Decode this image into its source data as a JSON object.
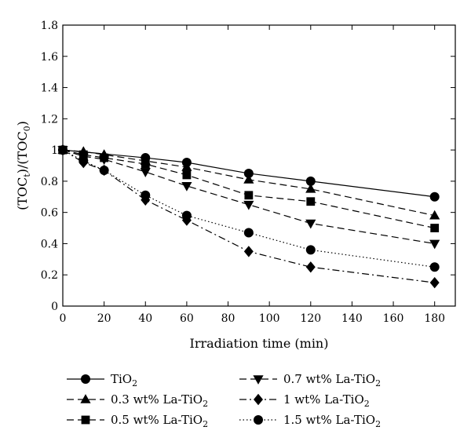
{
  "chart_data": {
    "type": "line",
    "title": "",
    "xlabel": "Irradiation time (min)",
    "ylabel": {
      "base": "(TOC",
      "sub1": "t",
      "mid": ")/(TOC",
      "sub2": "0",
      "end": ")"
    },
    "xlim": [
      0,
      190
    ],
    "ylim": [
      0,
      1.8
    ],
    "xticks": [
      0,
      20,
      40,
      60,
      80,
      100,
      120,
      140,
      160,
      180
    ],
    "yticks": [
      0,
      0.2,
      0.4,
      0.6,
      0.8,
      1,
      1.2,
      1.4,
      1.6,
      1.8
    ],
    "grid": false,
    "legend_position": "bottom",
    "series": [
      {
        "name": "TiO",
        "sub": "2",
        "marker": "circle",
        "dash": "solid",
        "x": [
          0,
          40,
          60,
          90,
          120,
          180
        ],
        "y": [
          1.0,
          0.95,
          0.92,
          0.85,
          0.8,
          0.7
        ]
      },
      {
        "name": "0.3 wt% La-TiO",
        "sub": "2",
        "marker": "triangle-up",
        "dash": "dashed",
        "x": [
          0,
          10,
          20,
          40,
          60,
          90,
          120,
          180
        ],
        "y": [
          1.0,
          0.99,
          0.97,
          0.93,
          0.89,
          0.81,
          0.75,
          0.58
        ]
      },
      {
        "name": "0.5 wt% La-TiO",
        "sub": "2",
        "marker": "square",
        "dash": "dashed",
        "x": [
          0,
          10,
          20,
          40,
          60,
          90,
          120,
          180
        ],
        "y": [
          1.0,
          0.97,
          0.95,
          0.91,
          0.84,
          0.71,
          0.67,
          0.5
        ]
      },
      {
        "name": "0.7 wt% La-TiO",
        "sub": "2",
        "marker": "triangle-down",
        "dash": "dashed",
        "x": [
          0,
          10,
          20,
          40,
          60,
          90,
          120,
          180
        ],
        "y": [
          1.0,
          0.96,
          0.94,
          0.86,
          0.77,
          0.65,
          0.53,
          0.4
        ]
      },
      {
        "name": "1 wt% La-TiO",
        "sub": "2",
        "marker": "diamond",
        "dash": "dashdot",
        "x": [
          0,
          10,
          20,
          40,
          60,
          90,
          120,
          180
        ],
        "y": [
          1.0,
          0.92,
          0.87,
          0.68,
          0.55,
          0.35,
          0.25,
          0.15
        ]
      },
      {
        "name": "1.5 wt% La-TiO",
        "sub": "2",
        "marker": "circle",
        "dash": "dotted",
        "x": [
          0,
          10,
          20,
          40,
          60,
          90,
          120,
          180
        ],
        "y": [
          1.0,
          0.93,
          0.87,
          0.71,
          0.58,
          0.47,
          0.36,
          0.25
        ]
      }
    ]
  }
}
